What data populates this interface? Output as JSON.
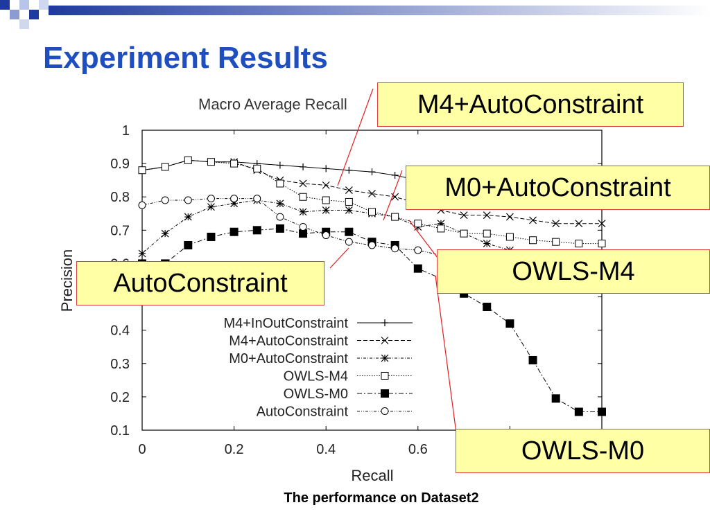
{
  "slide": {
    "title": "Experiment Results",
    "caption": "The performance on Dataset2"
  },
  "callouts": {
    "m4_auto": "M4+AutoConstraint",
    "m0_auto": "M0+AutoConstraint",
    "owls_m4": "OWLS-M4",
    "auto": "AutoConstraint",
    "owls_m0": "OWLS-M0"
  },
  "colors": {
    "title": "#1f4fbf",
    "callout_bg": "#ffffa6",
    "callout_border": "#e04040",
    "deco_dark": "#1f3a9e",
    "deco_light": "#b8c4e8"
  },
  "chart_data": {
    "type": "line",
    "title": "Macro Average Recall",
    "xlabel": "Recall",
    "ylabel": "Precision",
    "xlim": [
      0,
      1
    ],
    "ylim": [
      0.1,
      1
    ],
    "x": [
      0,
      0.05,
      0.1,
      0.15,
      0.2,
      0.25,
      0.3,
      0.35,
      0.4,
      0.45,
      0.5,
      0.55,
      0.6,
      0.65,
      0.7,
      0.75,
      0.8,
      0.85,
      0.9,
      0.95,
      1.0
    ],
    "xticks": [
      "0",
      "0.2",
      "0.4",
      "0.6"
    ],
    "yticks": [
      "0.1",
      "0.2",
      "0.3",
      "0.4",
      "0.5",
      "0.6",
      "0.7",
      "0.8",
      "0.9",
      "1"
    ],
    "series": [
      {
        "name": "M4+InOutConstraint",
        "marker": "plus",
        "dash": "",
        "values": [
          0.88,
          0.89,
          0.91,
          0.905,
          0.905,
          0.9,
          0.895,
          0.89,
          0.885,
          0.88,
          0.875,
          0.865,
          0.85,
          0.84,
          0.83,
          0.82,
          0.81,
          0.8,
          0.79,
          0.78,
          0.77
        ]
      },
      {
        "name": "M4+AutoConstraint",
        "marker": "x",
        "dash": "6,3",
        "values": [
          0.88,
          0.89,
          0.91,
          0.905,
          0.905,
          0.88,
          0.85,
          0.84,
          0.835,
          0.82,
          0.81,
          0.8,
          0.78,
          0.76,
          0.745,
          0.745,
          0.74,
          0.73,
          0.72,
          0.72,
          0.72
        ]
      },
      {
        "name": "M0+AutoConstraint",
        "marker": "star",
        "dash": "4,2,1,2",
        "values": [
          0.63,
          0.69,
          0.74,
          0.77,
          0.78,
          0.79,
          0.78,
          0.755,
          0.76,
          0.76,
          0.75,
          0.74,
          0.71,
          0.72,
          0.69,
          0.66,
          0.64,
          0.63,
          0.63,
          0.63,
          0.63
        ]
      },
      {
        "name": "OWLS-M4",
        "marker": "square",
        "dash": "1.5,2",
        "values": [
          0.88,
          0.89,
          0.91,
          0.905,
          0.9,
          0.885,
          0.84,
          0.8,
          0.79,
          0.785,
          0.755,
          0.74,
          0.72,
          0.705,
          0.69,
          0.69,
          0.68,
          0.67,
          0.665,
          0.66,
          0.66
        ]
      },
      {
        "name": "OWLS-M0",
        "marker": "filled-square",
        "dash": "7,3,2,3",
        "values": [
          0.6,
          0.6,
          0.655,
          0.68,
          0.695,
          0.7,
          0.705,
          0.69,
          0.695,
          0.695,
          0.665,
          0.655,
          0.585,
          0.555,
          0.51,
          0.47,
          0.42,
          0.31,
          0.195,
          0.155,
          0.155
        ]
      },
      {
        "name": "AutoConstraint",
        "marker": "circle",
        "dash": "4,2,1,2,1,2",
        "values": [
          0.775,
          0.79,
          0.79,
          0.795,
          0.795,
          0.795,
          0.74,
          0.71,
          0.685,
          0.665,
          0.655,
          0.645,
          0.64,
          0.625,
          0.615,
          0.605,
          0.6,
          0.59,
          0.59,
          0.59,
          0.59
        ]
      }
    ],
    "grid": false,
    "legend_position": "center"
  }
}
